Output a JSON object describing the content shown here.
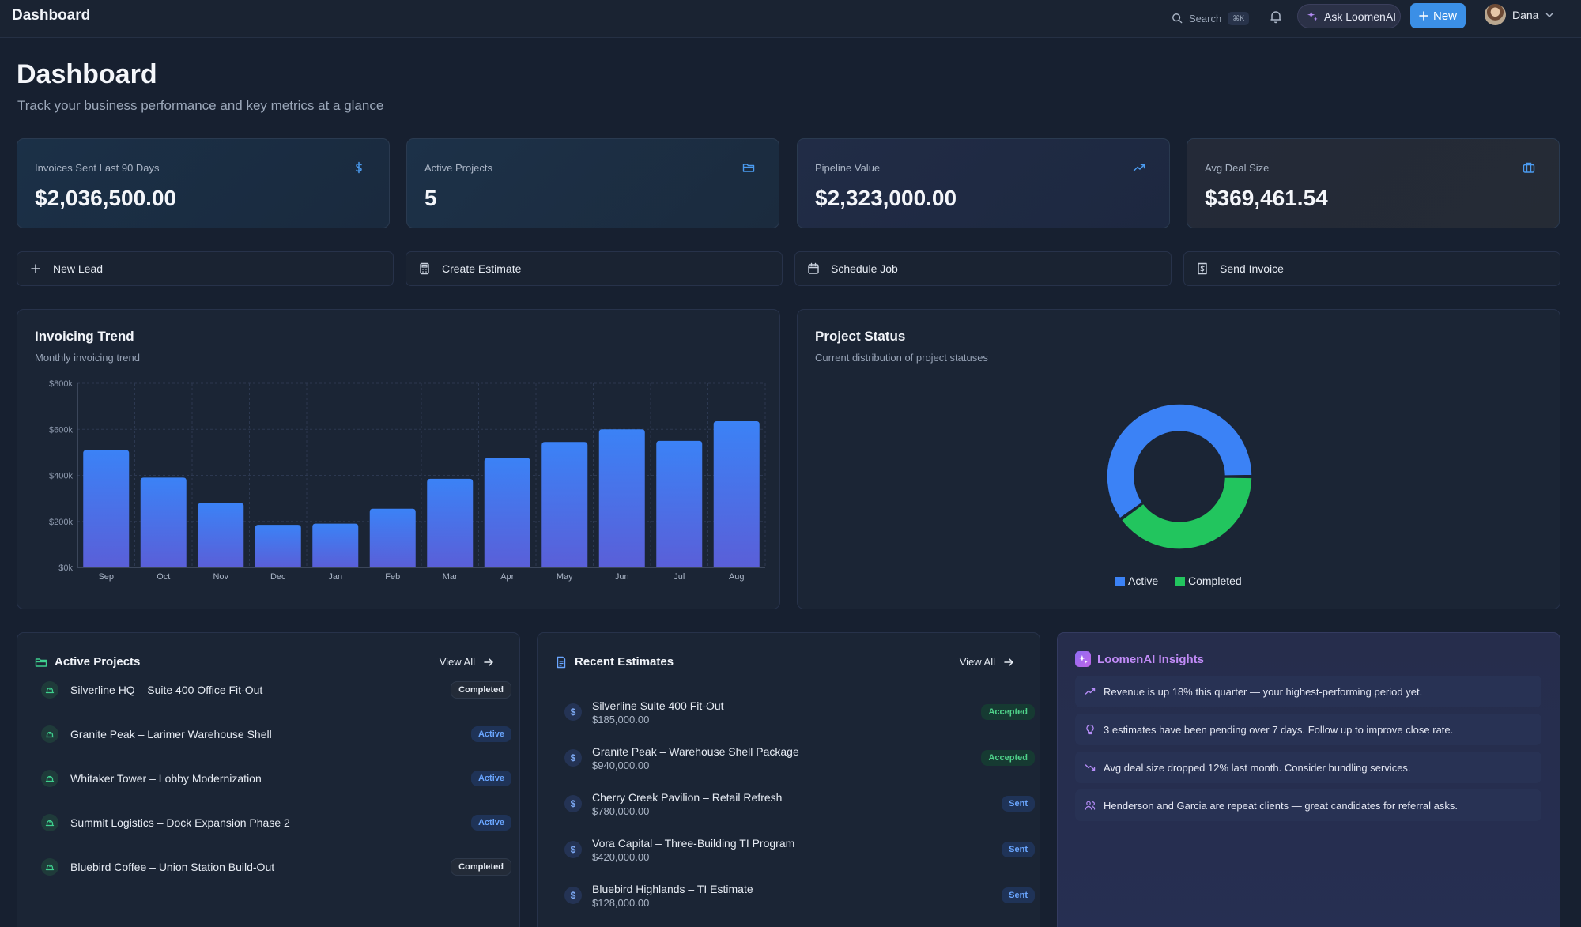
{
  "topbar": {
    "brand": "Dashboard",
    "search_label": "Search",
    "search_shortcut": "⌘K",
    "ask_label": "Ask LoomenAI",
    "new_label": "New",
    "user_name": "Dana"
  },
  "header": {
    "title": "Dashboard",
    "subtitle": "Track your business performance and key metrics at a glance"
  },
  "stats": [
    {
      "label": "Invoices Sent Last 90 Days",
      "value": "$2,036,500.00",
      "icon": "dollar-icon"
    },
    {
      "label": "Active Projects",
      "value": "5",
      "icon": "folder-icon"
    },
    {
      "label": "Pipeline Value",
      "value": "$2,323,000.00",
      "icon": "trend-up-icon"
    },
    {
      "label": "Avg Deal Size",
      "value": "$369,461.54",
      "icon": "briefcase-icon"
    }
  ],
  "actions": [
    {
      "label": "New Lead",
      "icon": "plus-icon"
    },
    {
      "label": "Create Estimate",
      "icon": "calculator-icon"
    },
    {
      "label": "Schedule Job",
      "icon": "calendar-icon"
    },
    {
      "label": "Send Invoice",
      "icon": "receipt-icon"
    }
  ],
  "invoicing": {
    "title": "Invoicing Trend",
    "subtitle": "Monthly invoicing trend"
  },
  "status": {
    "title": "Project Status",
    "subtitle": "Current distribution of project statuses"
  },
  "chart_data": [
    {
      "type": "bar",
      "title": "Invoicing Trend",
      "categories": [
        "Sep",
        "Oct",
        "Nov",
        "Dec",
        "Jan",
        "Feb",
        "Mar",
        "Apr",
        "May",
        "Jun",
        "Jul",
        "Aug"
      ],
      "values": [
        510000,
        390000,
        280000,
        185000,
        190000,
        255000,
        385000,
        475000,
        545000,
        600000,
        550000,
        635000
      ],
      "yticks": [
        "$0k",
        "$200k",
        "$400k",
        "$600k",
        "$800k"
      ],
      "ylim": [
        0,
        800000
      ],
      "grid": true,
      "color": "#3b82f6"
    },
    {
      "type": "pie",
      "title": "Project Status",
      "labels": [
        "Active",
        "Completed"
      ],
      "values": [
        3,
        2
      ],
      "colors": [
        "#3b82f6",
        "#22c55e"
      ],
      "legend": "bottom"
    }
  ],
  "projects": {
    "title": "Active Projects",
    "view_all": "View All",
    "items": [
      {
        "name": "Silverline HQ – Suite 400 Office Fit-Out",
        "status": "Completed"
      },
      {
        "name": "Granite Peak – Larimer Warehouse Shell",
        "status": "Active"
      },
      {
        "name": "Whitaker Tower – Lobby Modernization",
        "status": "Active"
      },
      {
        "name": "Summit Logistics – Dock Expansion Phase 2",
        "status": "Active"
      },
      {
        "name": "Bluebird Coffee – Union Station Build-Out",
        "status": "Completed"
      }
    ]
  },
  "estimates": {
    "title": "Recent Estimates",
    "view_all": "View All",
    "items": [
      {
        "name": "Silverline Suite 400 Fit-Out",
        "amount": "$185,000.00",
        "status": "Accepted"
      },
      {
        "name": "Granite Peak – Warehouse Shell Package",
        "amount": "$940,000.00",
        "status": "Accepted"
      },
      {
        "name": "Cherry Creek Pavilion – Retail Refresh",
        "amount": "$780,000.00",
        "status": "Sent"
      },
      {
        "name": "Vora Capital – Three-Building TI Program",
        "amount": "$420,000.00",
        "status": "Sent"
      },
      {
        "name": "Bluebird Highlands – TI Estimate",
        "amount": "$128,000.00",
        "status": "Sent"
      }
    ]
  },
  "insights": {
    "title": "LoomenAI Insights",
    "items": [
      {
        "text": "Revenue is up 18% this quarter — your highest-performing period yet.",
        "icon": "trend-up-icon"
      },
      {
        "text": "3 estimates have been pending over 7 days. Follow up to improve close rate.",
        "icon": "lightbulb-icon"
      },
      {
        "text": "Avg deal size dropped 12% last month. Consider bundling services.",
        "icon": "trend-down-icon"
      },
      {
        "text": "Henderson and Garcia are repeat clients — great candidates for referral asks.",
        "icon": "users-icon"
      }
    ]
  }
}
